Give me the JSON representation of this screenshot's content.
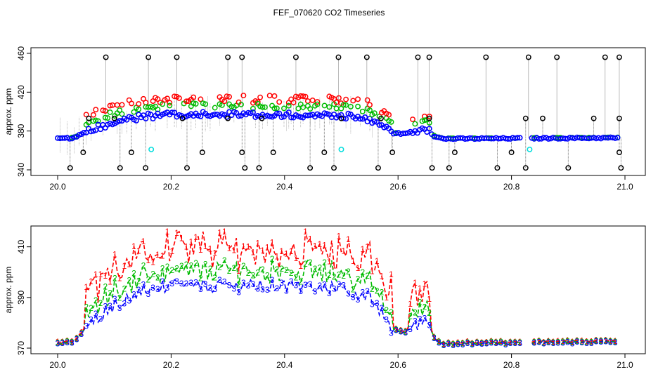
{
  "title": "FEF_070620  CO2 Timeseries",
  "chart_data": [
    {
      "type": "scatter",
      "ylabel": "approx. ppm",
      "xlabel": "",
      "xlim": [
        20.0,
        21.0
      ],
      "ylim": [
        340,
        460
      ],
      "xticks": [
        "20.0",
        "20.2",
        "20.4",
        "20.6",
        "20.8",
        "21.0"
      ],
      "yticks": [
        "340",
        "380",
        "420",
        "460"
      ],
      "colors": {
        "s1": "#ff0000",
        "s2": "#00bb00",
        "s3": "#0000ff",
        "raw": "#000000",
        "cal": "#00dddd",
        "vline": "#999999"
      },
      "profile": [
        {
          "x": 20.0,
          "y": 0
        },
        {
          "x": 20.03,
          "y": 1
        },
        {
          "x": 20.06,
          "y": 10
        },
        {
          "x": 20.1,
          "y": 17
        },
        {
          "x": 20.15,
          "y": 23
        },
        {
          "x": 20.2,
          "y": 25
        },
        {
          "x": 20.3,
          "y": 25
        },
        {
          "x": 20.4,
          "y": 25
        },
        {
          "x": 20.5,
          "y": 24
        },
        {
          "x": 20.55,
          "y": 20
        },
        {
          "x": 20.575,
          "y": 12
        },
        {
          "x": 20.59,
          "y": 6
        },
        {
          "x": 20.61,
          "y": 5
        },
        {
          "x": 20.625,
          "y": 7
        },
        {
          "x": 20.64,
          "y": 10
        },
        {
          "x": 20.655,
          "y": 8
        },
        {
          "x": 20.665,
          "y": 2
        },
        {
          "x": 20.68,
          "y": 0
        },
        {
          "x": 20.99,
          "y": 1
        }
      ],
      "baseline": 372,
      "raw_high": [
        20.085,
        20.16,
        20.21,
        20.3,
        20.325,
        20.42,
        20.495,
        20.545,
        20.635,
        20.655,
        20.755,
        20.83,
        20.88,
        20.965,
        20.99
      ],
      "raw_low": [
        20.022,
        20.11,
        20.155,
        20.228,
        20.33,
        20.355,
        20.445,
        20.487,
        20.565,
        20.66,
        20.69,
        20.775,
        20.825,
        20.9,
        20.993
      ],
      "raw_mid": [
        20.045,
        20.13,
        20.255,
        20.325,
        20.38,
        20.47,
        20.59,
        20.7,
        20.8,
        20.99
      ],
      "raw_upper": [
        20.055,
        20.1,
        20.22,
        20.3,
        20.36,
        20.5,
        20.57,
        20.655,
        20.825,
        20.855,
        20.945,
        20.99
      ],
      "cal_points": [
        {
          "x": 20.165,
          "y": 361
        },
        {
          "x": 20.5,
          "y": 361
        },
        {
          "x": 20.832,
          "y": 361
        }
      ],
      "gap": [
        20.818,
        20.832
      ]
    },
    {
      "type": "line",
      "ylabel": "approx. ppm",
      "xlabel": "",
      "xlim": [
        20.0,
        21.0
      ],
      "ylim": [
        370,
        416
      ],
      "xticks": [
        "20.0",
        "20.2",
        "20.4",
        "20.6",
        "20.8",
        "21.0"
      ],
      "yticks": [
        "370",
        "390",
        "410"
      ],
      "series": [
        {
          "name": "1",
          "label": "1",
          "color": "#ff0000"
        },
        {
          "name": "2",
          "label": "2",
          "color": "#00bb00"
        },
        {
          "name": "3",
          "label": "3",
          "color": "#0000ff"
        }
      ],
      "baseline": 371.5,
      "gap": [
        20.818,
        20.832
      ]
    }
  ]
}
